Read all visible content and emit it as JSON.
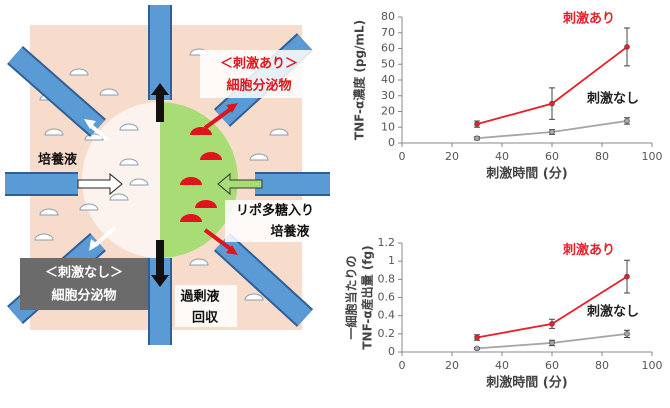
{
  "diagram": {
    "stim_title": "＜刺激あり＞",
    "stim_sub": "細胞分泌物",
    "medium": "培養液",
    "lps_1": "リポ多糖入り",
    "lps_2": "培養液",
    "nostim_title": "＜刺激なし＞",
    "nostim_sub": "細胞分泌物",
    "waste_1": "過剰液",
    "waste_2": "回収"
  },
  "chart_data": [
    {
      "type": "line",
      "xlabel": "刺激時間 (分)",
      "ylabel": [
        "TNF-α濃度 (pg/mL)"
      ],
      "xlim": [
        0,
        100
      ],
      "xticks": [
        0,
        20,
        40,
        60,
        80,
        100
      ],
      "ylim": [
        0,
        80
      ],
      "yticks": [
        0,
        10,
        20,
        30,
        40,
        50,
        60,
        70,
        80
      ],
      "x": [
        30,
        60,
        90
      ],
      "series": [
        {
          "name": "刺激あり",
          "color": "#e8202a",
          "values": [
            12,
            25,
            61
          ],
          "errors": [
            2,
            10,
            12
          ]
        },
        {
          "name": "刺激なし",
          "color": "#a6a6a6",
          "values": [
            3,
            7,
            14
          ],
          "errors": [
            1,
            1.5,
            2
          ]
        }
      ]
    },
    {
      "type": "line",
      "xlabel": "刺激時間 (分)",
      "ylabel": [
        "一細胞当たりの",
        "TNF-α産出量 (fg)"
      ],
      "xlim": [
        0,
        100
      ],
      "xticks": [
        0,
        20,
        40,
        60,
        80,
        100
      ],
      "ylim": [
        0,
        1.2
      ],
      "yticks": [
        0,
        0.2,
        0.4,
        0.6,
        0.8,
        1,
        1.2
      ],
      "x": [
        30,
        60,
        90
      ],
      "series": [
        {
          "name": "刺激あり",
          "color": "#e8202a",
          "values": [
            0.16,
            0.31,
            0.83
          ],
          "errors": [
            0.03,
            0.05,
            0.18
          ]
        },
        {
          "name": "刺激なし",
          "color": "#a6a6a6",
          "values": [
            0.04,
            0.1,
            0.2
          ],
          "errors": [
            0.01,
            0.03,
            0.04
          ]
        }
      ]
    }
  ]
}
